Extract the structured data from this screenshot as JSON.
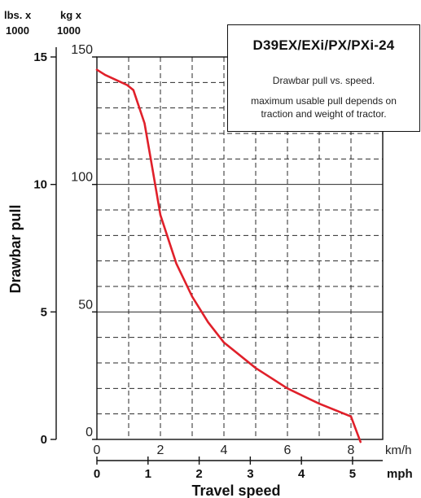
{
  "chart_data": {
    "type": "line",
    "title": "D39EX/EXi/PX/PXi-24",
    "subtitle": "Drawbar pull vs. speed.",
    "note": "maximum usable pull depends on traction and weight of tractor.",
    "xlabel": "Travel speed",
    "ylabel": "Drawbar pull",
    "x_axes": [
      {
        "unit": "km/h",
        "ticks": [
          "0",
          "2",
          "4",
          "6",
          "8"
        ],
        "range": [
          0,
          9
        ]
      },
      {
        "unit": "mph",
        "ticks": [
          "0",
          "1",
          "2",
          "3",
          "4",
          "5"
        ],
        "range": [
          0,
          5.59
        ]
      }
    ],
    "y_axes": [
      {
        "unit_line1": "kg x",
        "unit_line2": "1000",
        "ticks": [
          "0",
          "50",
          "100",
          "150"
        ],
        "range": [
          0,
          150
        ]
      },
      {
        "unit_line1": "lbs. x",
        "unit_line2": "1000",
        "ticks": [
          "0",
          "5",
          "10",
          "15"
        ],
        "range": [
          0,
          15
        ]
      }
    ],
    "grid": true,
    "series": [
      {
        "color": "#e0202a",
        "x": [
          0,
          0.25,
          0.6,
          0.95,
          1.15,
          1.5,
          1.75,
          2,
          2.5,
          3,
          3.5,
          4,
          5,
          6,
          7,
          8,
          8.3
        ],
        "y": [
          145,
          143,
          141,
          139,
          137,
          124,
          106,
          88,
          69,
          56,
          46,
          38,
          28,
          20,
          14,
          9,
          -1
        ]
      }
    ]
  }
}
